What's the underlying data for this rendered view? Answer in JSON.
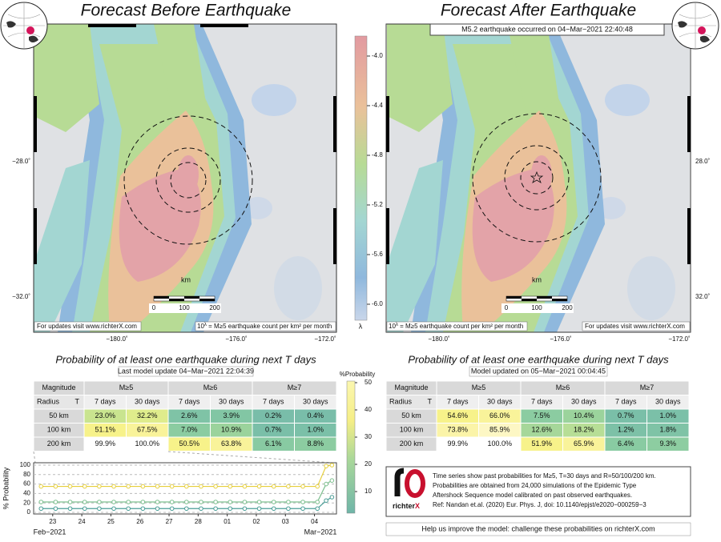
{
  "left_map": {
    "title": "Forecast Before Earthquake",
    "y_labels": [
      "−28.0˚",
      "−32.0˚"
    ],
    "x_labels": [
      "−180.0˚",
      "−176.0˚",
      "−172.0˚"
    ],
    "scale": {
      "unit": "km",
      "ticks": [
        "0",
        "100",
        "200"
      ]
    },
    "footer_left": "For updates visit www.richterX.com",
    "footer_right": {
      "base": "10",
      "exponent": "λ",
      "text": " = M≥5 earthquake count per km² per month"
    }
  },
  "right_map": {
    "title": "Forecast After Earthquake",
    "annotation": "M5.2 earthquake occurred on 04−Mar−2021 22:40:48",
    "y_labels": [
      "28.0˚",
      "32.0˚"
    ],
    "x_labels": [
      "−180.0˚",
      "−176.0˚",
      "−172.0˚"
    ],
    "scale": {
      "unit": "km",
      "ticks": [
        "0",
        "100",
        "200"
      ]
    },
    "footer_left": {
      "base": "10",
      "exponent": "λ",
      "text": " = M≥5 earthquake count per km² per month"
    },
    "footer_right": "For updates visit www.richterX.com"
  },
  "colorbar": {
    "ticks": [
      "-4.0",
      "-4.4",
      "-4.8",
      "-5.2",
      "-5.6",
      "-6.0"
    ],
    "label": "λ"
  },
  "left_table": {
    "title": "Probability of at least one earthquake during next T days",
    "subtitle": "Last model update 04−Mar−2021 22:04:39",
    "header": [
      "Magnitude",
      "M≥5",
      "M≥6",
      "M≥7"
    ],
    "subheader": [
      "Radius",
      "T",
      "7 days",
      "30 days",
      "7 days",
      "30 days",
      "7 days",
      "30 days"
    ],
    "rows": [
      [
        "50 km",
        "23.0%",
        "32.2%",
        "2.6%",
        "3.9%",
        "0.2%",
        "0.4%"
      ],
      [
        "100 km",
        "51.1%",
        "67.5%",
        "7.0%",
        "10.9%",
        "0.7%",
        "1.0%"
      ],
      [
        "200 km",
        "99.9%",
        "100.0%",
        "50.5%",
        "63.8%",
        "6.1%",
        "8.8%"
      ]
    ],
    "cell_colors": [
      [
        "#c9e48f",
        "#dfec8c",
        "#7fc3a6",
        "#82c6a4",
        "#79bda9",
        "#79bda9"
      ],
      [
        "#f7f28a",
        "#f9f39a",
        "#8bcca1",
        "#9bd39c",
        "#7abfa8",
        "#7bc0a8"
      ],
      [
        "#ffffff",
        "#ffffff",
        "#f7f28a",
        "#f9f39a",
        "#88caa2",
        "#8ccca1"
      ]
    ]
  },
  "right_table": {
    "title": "Probability of at least one earthquake during next T days",
    "subtitle": "Model updated on 05−Mar−2021 00:04:45",
    "header": [
      "Magnitude",
      "M≥5",
      "M≥6",
      "M≥7"
    ],
    "subheader": [
      "Radius",
      "T",
      "7 days",
      "30 days",
      "7 days",
      "30 days",
      "7 days",
      "30 days"
    ],
    "rows": [
      [
        "50 km",
        "54.6%",
        "66.0%",
        "7.5%",
        "10.4%",
        "0.7%",
        "1.0%"
      ],
      [
        "100 km",
        "73.8%",
        "85.9%",
        "12.6%",
        "18.2%",
        "1.2%",
        "1.8%"
      ],
      [
        "200 km",
        "99.9%",
        "100.0%",
        "51.9%",
        "65.9%",
        "6.4%",
        "9.3%"
      ]
    ],
    "cell_colors": [
      [
        "#f7f28a",
        "#f9f39a",
        "#8bcca1",
        "#9bd39c",
        "#7abfa8",
        "#7bc0a8"
      ],
      [
        "#fbf4a8",
        "#fdf7c4",
        "#a6d79a",
        "#b7de96",
        "#7dc1a7",
        "#7fc3a6"
      ],
      [
        "#ffffff",
        "#ffffff",
        "#f7f28a",
        "#f9f39a",
        "#89cba2",
        "#8dcda1"
      ]
    ]
  },
  "probability_colorbar": {
    "label": "%Probability",
    "ticks": [
      "50",
      "40",
      "30",
      "20",
      "10"
    ]
  },
  "chart_data": {
    "type": "line",
    "y_label": "% Probability",
    "annotations": [
      "Feb−2021",
      "Mar−2021"
    ],
    "x": [
      22.6,
      23.1,
      23.6,
      24.1,
      24.6,
      25.1,
      25.6,
      26.1,
      26.6,
      27.1,
      27.6,
      28.1,
      28.6,
      29.1,
      29.6,
      30.1,
      30.6,
      31.1,
      31.6,
      32.1,
      32.4,
      32.6
    ],
    "xlim": [
      22.4,
      32.7
    ],
    "xticks": [
      23,
      24,
      25,
      26,
      27,
      28,
      {
        "value": 29,
        "label": "01"
      },
      {
        "value": 30,
        "label": "02"
      },
      {
        "value": 31,
        "label": "03"
      },
      {
        "value": 32,
        "label": "04"
      }
    ],
    "ylim": [
      0,
      100
    ],
    "yticks": [
      0,
      20,
      40,
      60,
      80,
      100
    ],
    "grid": true,
    "series": [
      {
        "name": "200 km",
        "color": "#e6cf3c",
        "values": [
          55,
          55,
          55,
          55,
          55,
          55,
          55,
          55,
          55,
          55,
          55,
          55,
          55,
          55,
          55,
          55,
          55,
          55,
          55,
          55,
          98,
          100
        ]
      },
      {
        "name": "100 km",
        "color": "#7cbf8e",
        "values": [
          22,
          22,
          22,
          22,
          22,
          22,
          22,
          22,
          22,
          22,
          22,
          22,
          22,
          22,
          22,
          22,
          22,
          22,
          22,
          22,
          60,
          67.5
        ]
      },
      {
        "name": "50 km",
        "color": "#4b9e97",
        "values": [
          8,
          8,
          8,
          8,
          8,
          8,
          8,
          8,
          8,
          8,
          8,
          8,
          8,
          8,
          8,
          8,
          8,
          8,
          8,
          8,
          25,
          32.2
        ]
      }
    ]
  },
  "info": {
    "logo": {
      "text": "richter",
      "accent": "X"
    },
    "lines": [
      "Time series show past probabilities for M≥5, T=30 days and R=50/100/200 km.",
      "Probabilities are obtained from 24,000 simulations of the Epidemic Type",
      "Aftershock Sequence model calibrated on past observed earthquakes.",
      "Ref: Nandan et.al. (2020) Eur. Phys. J, doi: 10.1140/epjst/e2020−000259−3"
    ]
  },
  "footer": "Help us improve the model: challenge these probabilities on richterX.com"
}
